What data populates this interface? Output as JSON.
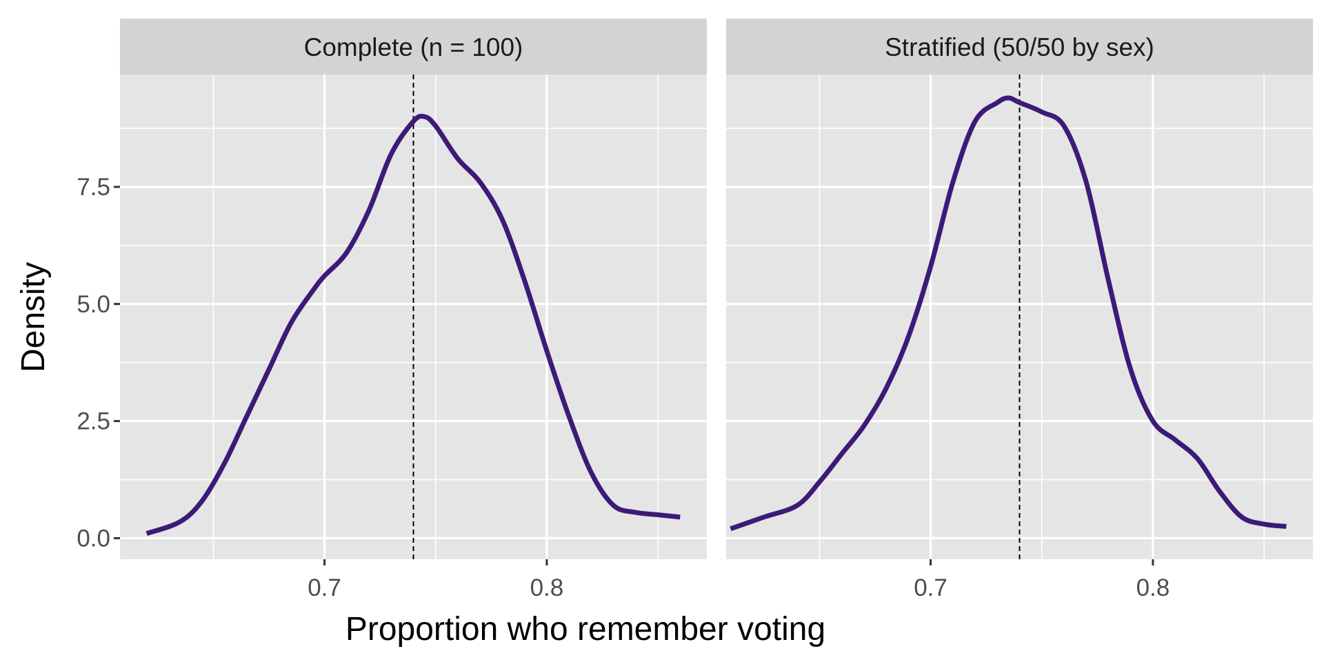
{
  "chart_data": {
    "type": "line",
    "subtype": "density",
    "xlabel": "Proportion who remember voting",
    "ylabel": "Density",
    "xlim": [
      0.608,
      0.872
    ],
    "ylim": [
      -0.45,
      9.9
    ],
    "x_ticks": [
      0.7,
      0.8
    ],
    "x_tick_labels": [
      "0.7",
      "0.8"
    ],
    "y_ticks": [
      0,
      2.5,
      5,
      7.5
    ],
    "y_tick_labels": [
      "0.0",
      "2.5",
      "5.0",
      "7.5"
    ],
    "grid": true,
    "panel_background": "#e5e5e5",
    "strip_background": "#d3d3d3",
    "line_color": "#3d1a78",
    "reference_line_color": "#000000",
    "panels": [
      {
        "name": "Complete (n = 100)",
        "reference_x": 0.74,
        "x": [
          0.62,
          0.635,
          0.645,
          0.655,
          0.665,
          0.675,
          0.685,
          0.695,
          0.7,
          0.71,
          0.72,
          0.73,
          0.74,
          0.745,
          0.75,
          0.76,
          0.77,
          0.78,
          0.79,
          0.8,
          0.81,
          0.82,
          0.83,
          0.84,
          0.85,
          0.86
        ],
        "y": [
          0.1,
          0.35,
          0.8,
          1.6,
          2.6,
          3.6,
          4.6,
          5.3,
          5.6,
          6.1,
          7.0,
          8.2,
          8.9,
          9.0,
          8.8,
          8.1,
          7.6,
          6.8,
          5.5,
          4.0,
          2.6,
          1.4,
          0.7,
          0.55,
          0.5,
          0.45
        ]
      },
      {
        "name": "Stratified (50/50 by sex)",
        "reference_x": 0.74,
        "x": [
          0.61,
          0.625,
          0.64,
          0.65,
          0.66,
          0.67,
          0.68,
          0.69,
          0.7,
          0.71,
          0.72,
          0.73,
          0.735,
          0.74,
          0.75,
          0.76,
          0.77,
          0.78,
          0.79,
          0.8,
          0.81,
          0.82,
          0.83,
          0.84,
          0.85,
          0.86
        ],
        "y": [
          0.2,
          0.45,
          0.7,
          1.2,
          1.8,
          2.4,
          3.2,
          4.3,
          5.8,
          7.6,
          8.9,
          9.3,
          9.4,
          9.3,
          9.1,
          8.8,
          7.6,
          5.5,
          3.6,
          2.5,
          2.1,
          1.7,
          1.0,
          0.45,
          0.3,
          0.25
        ]
      }
    ]
  }
}
